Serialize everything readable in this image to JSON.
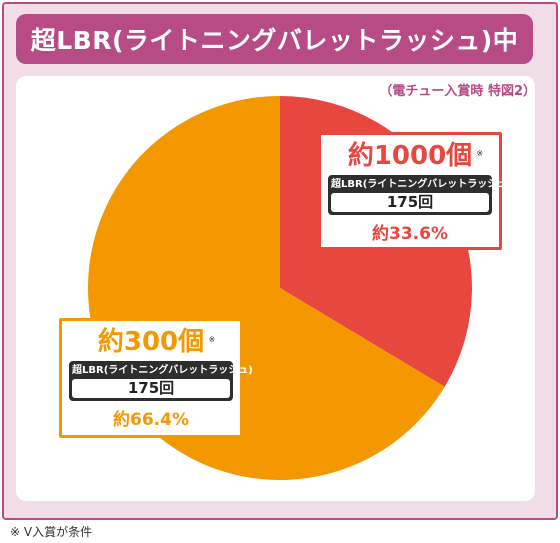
{
  "title": "超LBR(ライトニングバレットラッシュ)中",
  "subtitle": "（電チュー入賞時 特図2）",
  "footer_note": "※ V入賞が条件",
  "colors": {
    "frame": "#b64b86",
    "frame_bg": "#f1dde8",
    "red": "#e8473f",
    "orange": "#f39800"
  },
  "chart_data": {
    "type": "pie",
    "title": "超LBR(ライトニングバレットラッシュ)中",
    "slices": [
      {
        "label": "約1000個",
        "mode": "超LBR(ライトニングバレットラッシュ)",
        "count": "175回",
        "percent_label": "約33.6%",
        "value": 33.6,
        "color": "#e8473f"
      },
      {
        "label": "約300個",
        "mode": "超LBR(ライトニングバレットラッシュ)",
        "count": "175回",
        "percent_label": "約66.4%",
        "value": 66.4,
        "color": "#f39800"
      }
    ],
    "start_angle": "12 o'clock, clockwise",
    "legend": "none"
  },
  "callouts": {
    "red": {
      "big": "約1000個",
      "mark": "※",
      "mode": "超LBR(ライトニングバレットラッシュ)",
      "count": "175回",
      "pct": "約33.6%"
    },
    "orange": {
      "big": "約300個",
      "mark": "※",
      "mode": "超LBR(ライトニングバレットラッシュ)",
      "count": "175回",
      "pct": "約66.4%"
    }
  }
}
